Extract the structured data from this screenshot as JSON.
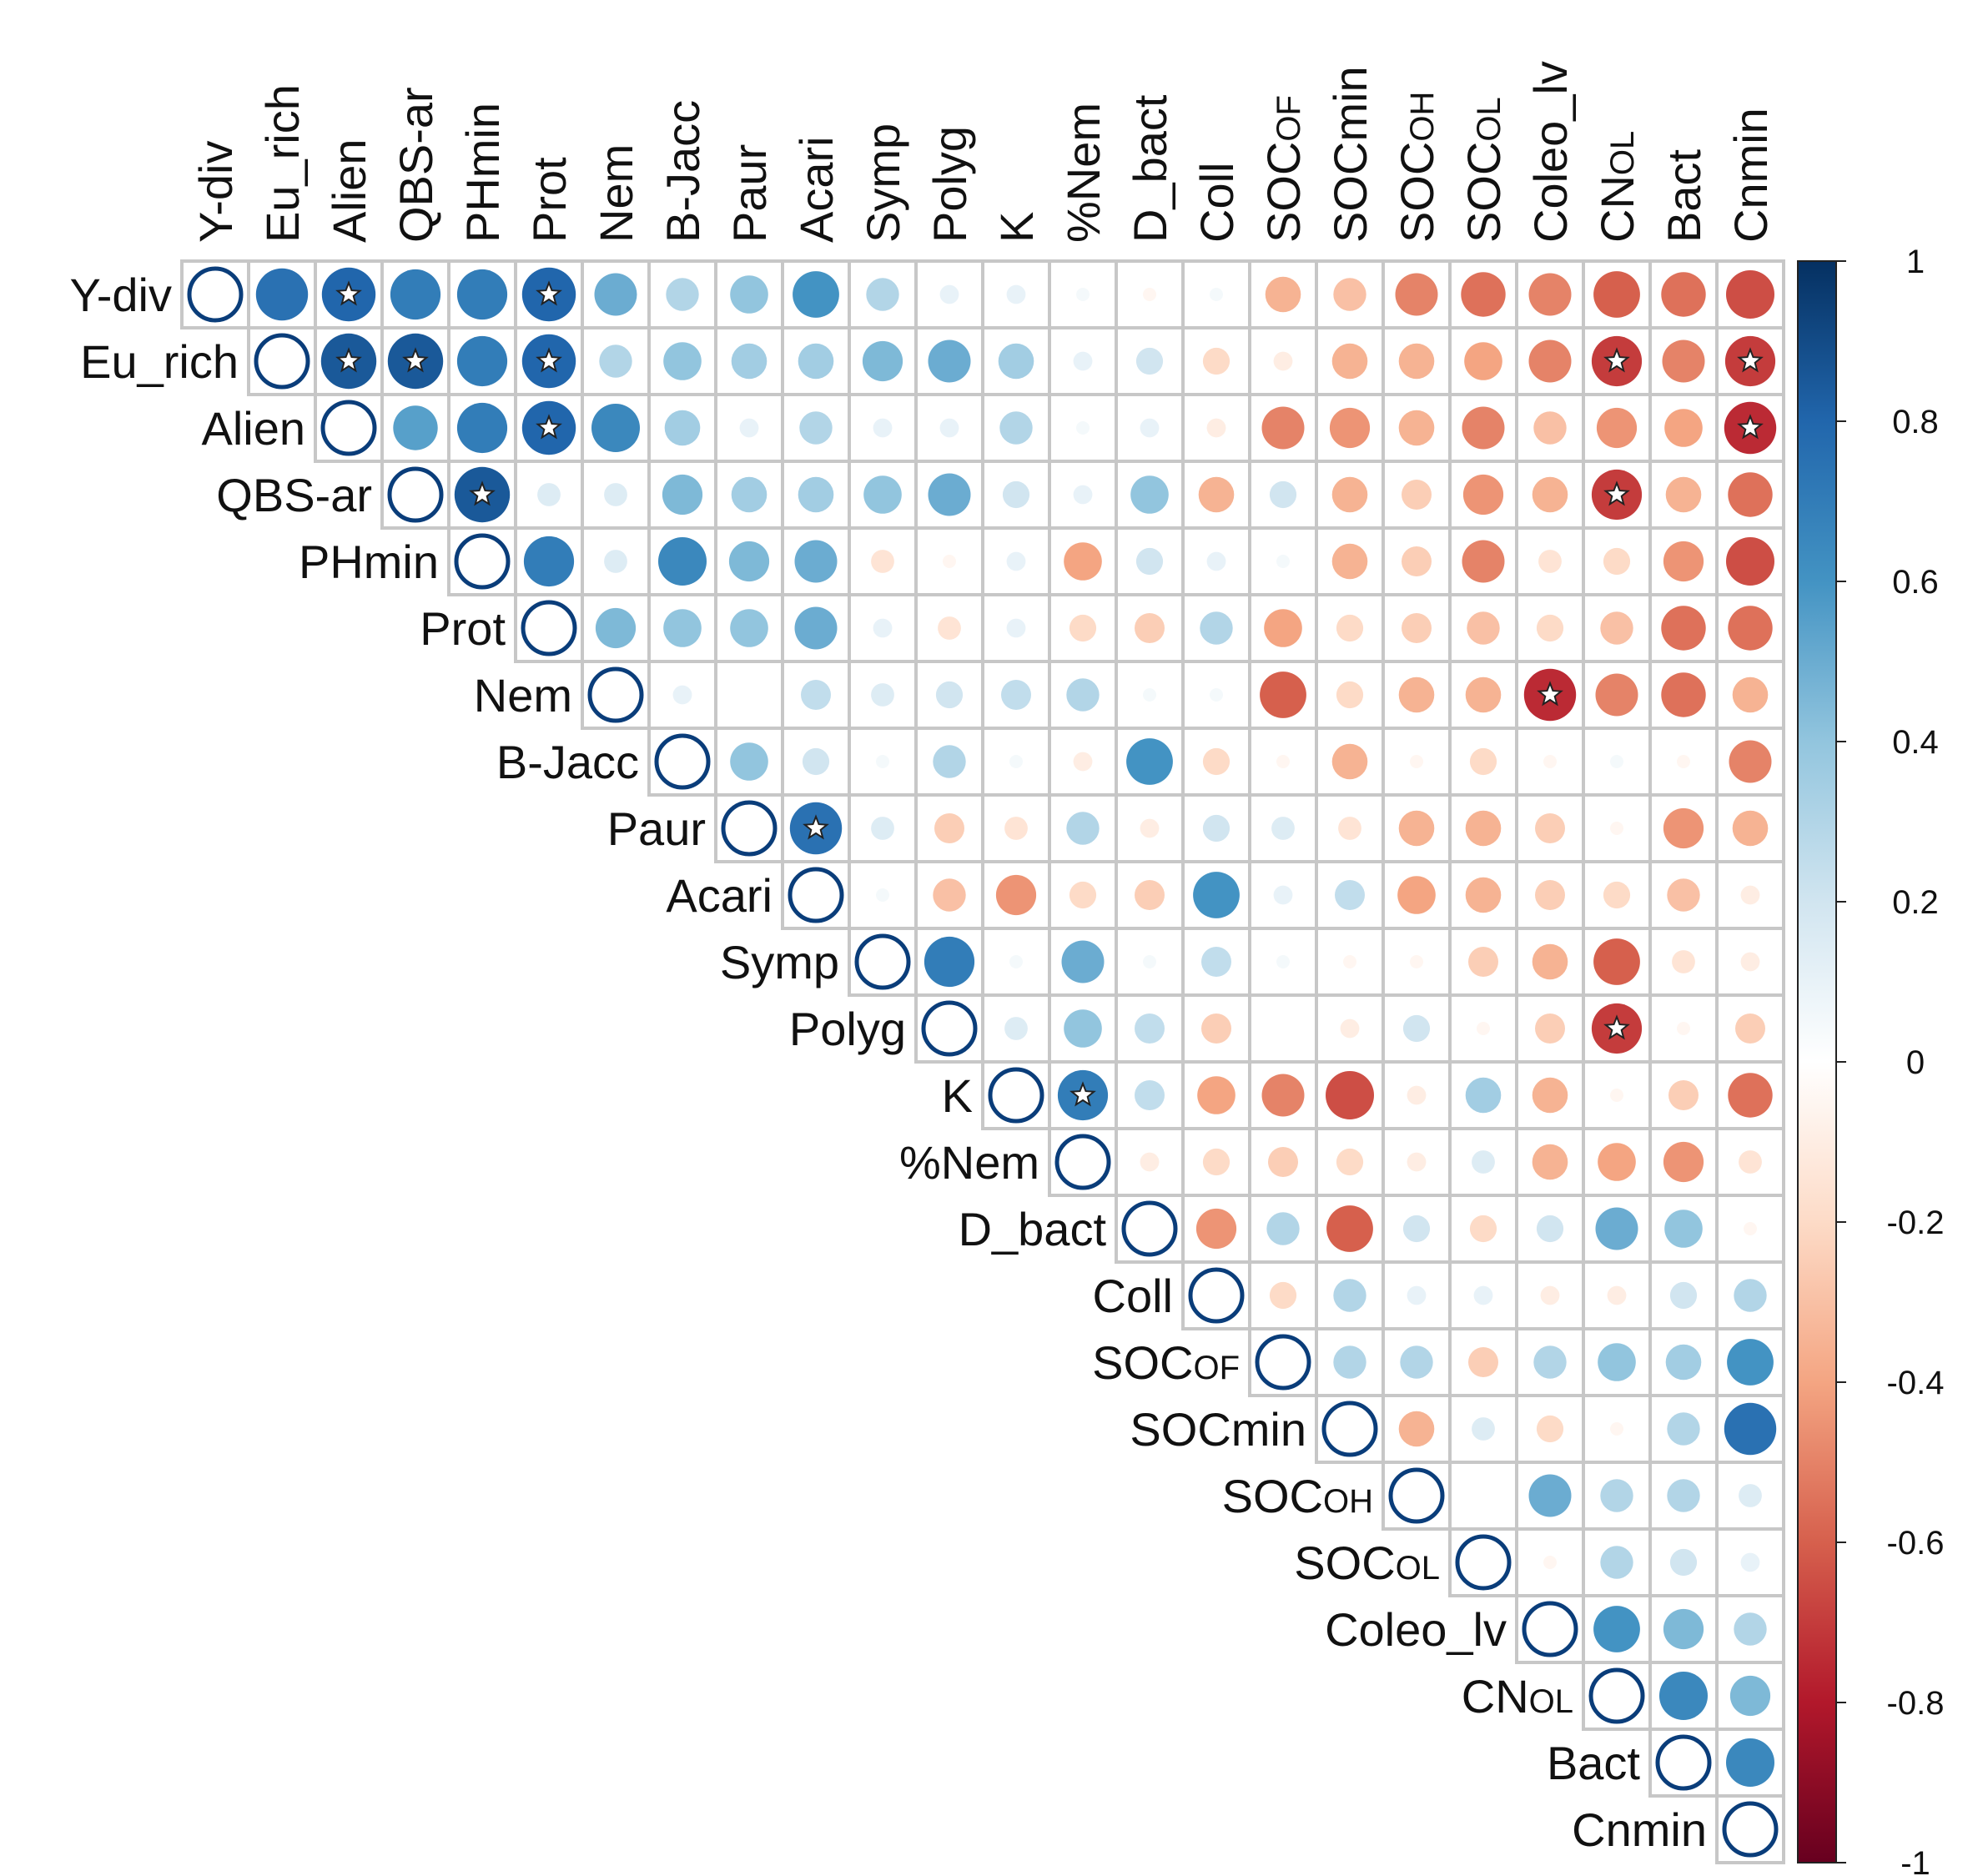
{
  "chart_data": {
    "type": "heatmap",
    "subtype": "correlation-matrix-upper-triangle",
    "variables": [
      "Y-div",
      "Eu_rich",
      "Alien",
      "QBS-ar",
      "PHmin",
      "Prot",
      "Nem",
      "B-Jacc",
      "Paur",
      "Acari",
      "Symp",
      "Polyg",
      "K",
      "%Nem",
      "D_bact",
      "Coll",
      "SOCOF",
      "SOCmin",
      "SOCOH",
      "SOCOL",
      "Coleo_lv",
      "CNOL",
      "Bact",
      "Cnmin"
    ],
    "row_labels": [
      {
        "text": "Y-div"
      },
      {
        "text": "Eu_rich"
      },
      {
        "text": "Alien"
      },
      {
        "text": "QBS-ar"
      },
      {
        "text": "PHmin"
      },
      {
        "text": "Prot"
      },
      {
        "text": "Nem"
      },
      {
        "text": "B-Jacc"
      },
      {
        "text": "Paur"
      },
      {
        "text": "Acari"
      },
      {
        "text": "Symp"
      },
      {
        "text": "Polyg"
      },
      {
        "text": "K"
      },
      {
        "text": "%Nem"
      },
      {
        "text": "D_bact"
      },
      {
        "text": "Coll"
      },
      {
        "text": "SOC",
        "sub": "OF"
      },
      {
        "text": "SOCmin"
      },
      {
        "text": "SOC",
        "sub": "OH"
      },
      {
        "text": "SOC",
        "sub": "OL"
      },
      {
        "text": "Coleo_lv"
      },
      {
        "text": "CN",
        "sub": "OL"
      },
      {
        "text": "Bact"
      },
      {
        "text": "Cnmin"
      }
    ],
    "col_labels": [
      {
        "text": "Y-div"
      },
      {
        "text": "Eu_rich"
      },
      {
        "text": "Alien"
      },
      {
        "text": "QBS-ar"
      },
      {
        "text": "PHmin"
      },
      {
        "text": "Prot"
      },
      {
        "text": "Nem"
      },
      {
        "text": "B-Jacc"
      },
      {
        "text": "Paur"
      },
      {
        "text": "Acari"
      },
      {
        "text": "Symp"
      },
      {
        "text": "Polyg"
      },
      {
        "text": "K"
      },
      {
        "text": "%Nem"
      },
      {
        "text": "D_bact"
      },
      {
        "text": "Coll"
      },
      {
        "text": "SOC",
        "sub": "OF"
      },
      {
        "text": "SOCmin"
      },
      {
        "text": "SOC",
        "sub": "OH"
      },
      {
        "text": "SOC",
        "sub": "OL"
      },
      {
        "text": "Coleo_lv"
      },
      {
        "text": "CN",
        "sub": "OL"
      },
      {
        "text": "Bact"
      },
      {
        "text": "Cnmin"
      }
    ],
    "upper_triangle_values": [
      [
        1,
        0.75,
        0.8,
        0.7,
        0.7,
        0.8,
        0.5,
        0.3,
        0.4,
        0.6,
        0.3,
        0.1,
        0.1,
        0.05,
        -0.05,
        0.05,
        -0.35,
        -0.3,
        -0.5,
        -0.55,
        -0.5,
        -0.6,
        -0.55,
        -0.65
      ],
      [
        1,
        0.85,
        0.85,
        0.7,
        0.8,
        0.3,
        0.4,
        0.35,
        0.35,
        0.45,
        0.5,
        0.35,
        0.1,
        0.2,
        -0.2,
        -0.1,
        -0.35,
        -0.35,
        -0.4,
        -0.5,
        -0.7,
        -0.5,
        -0.7
      ],
      [
        1,
        0.55,
        0.7,
        0.8,
        0.65,
        0.35,
        0.1,
        0.3,
        0.1,
        0.1,
        0.3,
        0.05,
        0.1,
        -0.1,
        -0.5,
        -0.45,
        -0.35,
        -0.5,
        -0.3,
        -0.45,
        -0.4,
        -0.75
      ],
      [
        1,
        0.85,
        0.15,
        0.15,
        0.45,
        0.35,
        0.35,
        0.4,
        0.5,
        0.2,
        0.1,
        0.4,
        -0.35,
        0.2,
        -0.35,
        -0.25,
        -0.45,
        -0.35,
        -0.7,
        -0.35,
        -0.55
      ],
      [
        1,
        0.7,
        0.15,
        0.65,
        0.45,
        0.5,
        -0.15,
        -0.05,
        0.1,
        -0.4,
        0.2,
        0.1,
        0.05,
        -0.35,
        -0.25,
        -0.5,
        -0.15,
        -0.2,
        -0.45,
        -0.65
      ],
      [
        1,
        0.45,
        0.4,
        0.4,
        0.5,
        0.1,
        -0.15,
        0.1,
        -0.2,
        -0.25,
        0.3,
        -0.4,
        -0.2,
        -0.25,
        -0.3,
        -0.2,
        -0.3,
        -0.55,
        -0.55
      ],
      [
        1,
        0.1,
        0,
        0.25,
        0.15,
        0.2,
        0.25,
        0.3,
        0.05,
        0.05,
        -0.6,
        -0.2,
        -0.35,
        -0.35,
        -0.75,
        -0.5,
        -0.55,
        -0.35
      ],
      [
        1,
        0.4,
        0.2,
        0.05,
        0.3,
        0.05,
        -0.1,
        0.6,
        -0.2,
        -0.05,
        -0.35,
        -0.05,
        -0.2,
        -0.05,
        0.05,
        -0.05,
        -0.5
      ],
      [
        1,
        0.75,
        0.15,
        -0.25,
        -0.15,
        0.3,
        -0.1,
        0.2,
        0.15,
        -0.15,
        -0.35,
        -0.35,
        -0.25,
        -0.05,
        -0.45,
        -0.35
      ],
      [
        1,
        0.05,
        -0.3,
        -0.45,
        -0.2,
        -0.25,
        0.6,
        0.1,
        0.25,
        -0.4,
        -0.35,
        -0.25,
        -0.2,
        -0.3,
        -0.1
      ],
      [
        1,
        0.7,
        0.05,
        0.5,
        0.05,
        0.25,
        0.05,
        -0.05,
        -0.05,
        -0.25,
        -0.35,
        -0.6,
        -0.15,
        -0.1
      ],
      [
        1,
        0.15,
        0.4,
        0.25,
        -0.25,
        0,
        -0.1,
        0.2,
        -0.05,
        -0.25,
        -0.7,
        -0.05,
        -0.25
      ],
      [
        1,
        0.7,
        0.25,
        -0.4,
        -0.5,
        -0.65,
        -0.1,
        0.35,
        -0.35,
        -0.05,
        -0.25,
        -0.55
      ],
      [
        1,
        -0.1,
        -0.2,
        -0.25,
        -0.2,
        -0.1,
        0.15,
        -0.35,
        -0.4,
        -0.45,
        -0.15
      ],
      [
        1,
        -0.45,
        0.3,
        -0.6,
        0.2,
        -0.2,
        0.2,
        0.5,
        0.4,
        -0.05
      ],
      [
        1,
        -0.2,
        0.3,
        0.1,
        0.1,
        -0.1,
        -0.1,
        0.2,
        0.3
      ],
      [
        1,
        0.3,
        0.3,
        -0.25,
        0.3,
        0.4,
        0.35,
        0.6
      ],
      [
        1,
        -0.35,
        0.15,
        -0.2,
        -0.05,
        0.3,
        0.75
      ],
      [
        1,
        0,
        0.5,
        0.3,
        0.3,
        0.15
      ],
      [
        1,
        -0.05,
        0.3,
        0.2,
        0.1
      ],
      [
        1,
        0.6,
        0.45,
        0.3
      ],
      [
        1,
        0.65,
        0.45
      ],
      [
        1,
        0.65
      ],
      [
        1
      ]
    ],
    "significant_cells_marked_with_star": [
      [
        "Y-div",
        "Alien"
      ],
      [
        "Y-div",
        "Prot"
      ],
      [
        "Eu_rich",
        "Alien"
      ],
      [
        "Eu_rich",
        "QBS-ar"
      ],
      [
        "Eu_rich",
        "Prot"
      ],
      [
        "Eu_rich",
        "CNOL"
      ],
      [
        "Eu_rich",
        "Cnmin"
      ],
      [
        "Alien",
        "Prot"
      ],
      [
        "Alien",
        "Cnmin"
      ],
      [
        "QBS-ar",
        "PHmin"
      ],
      [
        "QBS-ar",
        "CNOL"
      ],
      [
        "Nem",
        "Coleo_lv"
      ],
      [
        "Paur",
        "Acari"
      ],
      [
        "Polyg",
        "CNOL"
      ],
      [
        "K",
        "%Nem"
      ]
    ],
    "colorbar": {
      "range": [
        -1,
        1
      ],
      "tick_labels": [
        "1",
        "0.8",
        "0.6",
        "0.4",
        "0.2",
        "0",
        "-0.2",
        "-0.4",
        "-0.6",
        "-0.8",
        "-1"
      ],
      "color_stops": [
        "#67001f",
        "#b2182b",
        "#d6604d",
        "#f4a582",
        "#fddbc7",
        "#ffffff",
        "#d1e5f0",
        "#92c5de",
        "#4393c3",
        "#2166ac",
        "#053061"
      ]
    },
    "diagonal_marker_color": "#0a3d7a"
  }
}
